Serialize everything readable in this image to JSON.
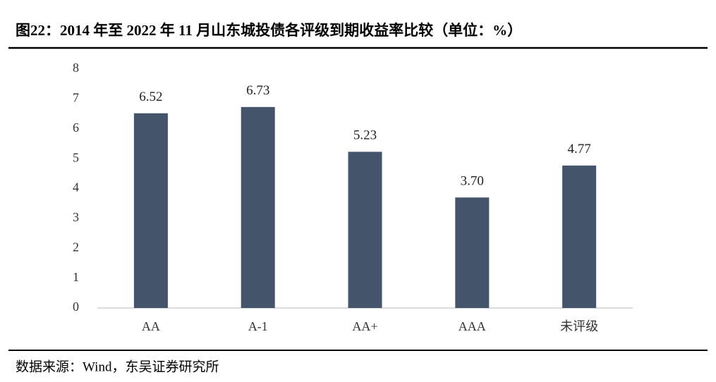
{
  "chart_data": {
    "type": "bar",
    "title": "图22：2014 年至 2022 年 11 月山东城投债各评级到期收益率比较（单位：%）",
    "categories": [
      "AA",
      "A-1",
      "AA+",
      "AAA",
      "未评级"
    ],
    "values": [
      6.52,
      6.73,
      5.23,
      3.7,
      4.77
    ],
    "value_labels": [
      "6.52",
      "6.73",
      "5.23",
      "3.70",
      "4.77"
    ],
    "color": "#44546a",
    "ylim": [
      0,
      8
    ],
    "yticks": [
      0,
      1,
      2,
      3,
      4,
      5,
      6,
      7,
      8
    ],
    "grid": false,
    "source": "数据来源：Wind，东吴证券研究所"
  }
}
